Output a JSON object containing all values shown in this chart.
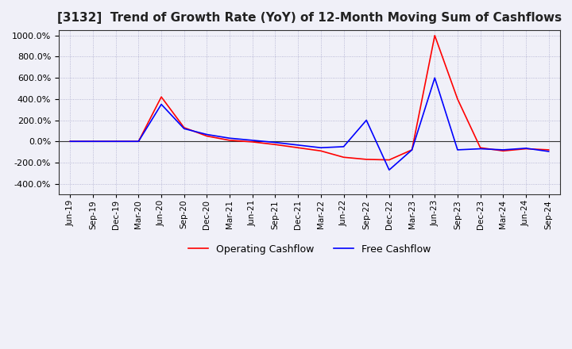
{
  "title": "[3132]  Trend of Growth Rate (YoY) of 12-Month Moving Sum of Cashflows",
  "title_fontsize": 11,
  "ylim": [
    -500,
    1050
  ],
  "yticks": [
    -400,
    -200,
    0,
    200,
    400,
    600,
    800,
    1000
  ],
  "background_color": "#f0f0f8",
  "plot_bg_color": "#f0f0f8",
  "grid_color": "#aaaacc",
  "legend_labels": [
    "Operating Cashflow",
    "Free Cashflow"
  ],
  "line_colors": [
    "#ff0000",
    "#0000ff"
  ],
  "x_labels": [
    "Jun-19",
    "Sep-19",
    "Dec-19",
    "Mar-20",
    "Jun-20",
    "Sep-20",
    "Dec-20",
    "Mar-21",
    "Jun-21",
    "Sep-21",
    "Dec-21",
    "Mar-22",
    "Jun-22",
    "Sep-22",
    "Dec-22",
    "Mar-23",
    "Jun-23",
    "Sep-23",
    "Dec-23",
    "Mar-24",
    "Jun-24",
    "Sep-24"
  ],
  "operating_cashflow": [
    0,
    0,
    0,
    0,
    420,
    130,
    50,
    10,
    -5,
    -30,
    -60,
    -90,
    -150,
    -170,
    -175,
    -80,
    1000,
    400,
    -60,
    -90,
    -70,
    -80
  ],
  "free_cashflow": [
    0,
    0,
    0,
    0,
    350,
    120,
    65,
    30,
    10,
    -10,
    -35,
    -60,
    -50,
    200,
    -270,
    -80,
    600,
    -80,
    -70,
    -80,
    -65,
    -95
  ]
}
